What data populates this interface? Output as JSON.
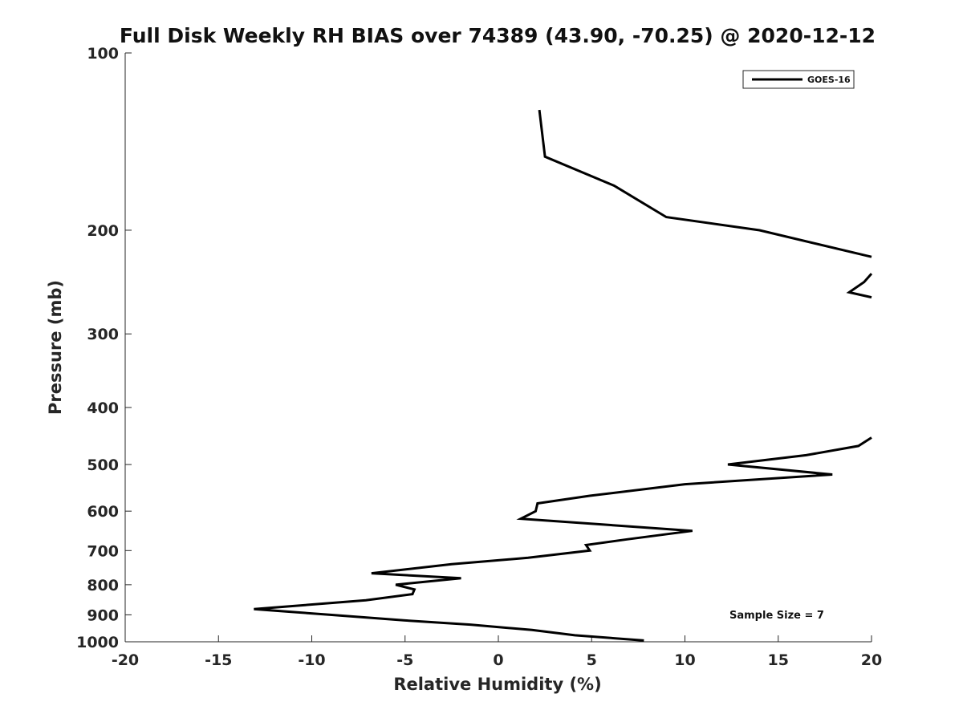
{
  "chart_data": {
    "type": "line",
    "title": "Full Disk Weekly RH BIAS over 74389 (43.90, -70.25) @ 2020-12-12",
    "xlabel": "Relative Humidity (%)",
    "ylabel": "Pressure (mb)",
    "xlim": [
      -20,
      20
    ],
    "ylim": [
      100,
      1000
    ],
    "y_scale": "log",
    "y_reversed": true,
    "x_ticks": [
      -20,
      -15,
      -10,
      -5,
      0,
      5,
      10,
      15,
      20
    ],
    "x_tick_labels": [
      "-20",
      "-15",
      "-10",
      "-5",
      "0",
      "5",
      "10",
      "15",
      "20"
    ],
    "y_ticks": [
      100,
      200,
      300,
      400,
      500,
      600,
      700,
      800,
      900,
      1000
    ],
    "y_tick_labels": [
      "100",
      "200",
      "300",
      "400",
      "500",
      "600",
      "700",
      "800",
      "900",
      "1000"
    ],
    "grid": false,
    "legend_position": "top-right",
    "annotation": "Sample Size = 7",
    "colors": {
      "line": "#000000",
      "axis": "#262626"
    },
    "series": [
      {
        "name": "GOES-16",
        "segments": [
          [
            [
              2.2,
              125
            ],
            [
              2.5,
              150
            ],
            [
              6.2,
              168
            ],
            [
              9.0,
              190
            ],
            [
              14.0,
              200
            ],
            [
              20.0,
              222
            ]
          ],
          [
            [
              20.0,
              237
            ],
            [
              19.6,
              245
            ],
            [
              18.8,
              255
            ],
            [
              20.0,
              260
            ]
          ],
          [
            [
              20.0,
              450
            ],
            [
              19.3,
              465
            ],
            [
              16.5,
              482
            ],
            [
              12.3,
              500
            ],
            [
              17.9,
              520
            ],
            [
              10.0,
              540
            ],
            [
              4.9,
              565
            ],
            [
              2.1,
              582
            ],
            [
              2.0,
              600
            ],
            [
              1.2,
              618
            ],
            [
              10.4,
              648
            ],
            [
              6.9,
              670
            ],
            [
              4.7,
              685
            ],
            [
              4.9,
              700
            ],
            [
              1.6,
              720
            ],
            [
              -2.5,
              738
            ],
            [
              -6.8,
              765
            ],
            [
              -2.0,
              780
            ],
            [
              -5.5,
              800
            ],
            [
              -4.5,
              815
            ],
            [
              -4.6,
              830
            ],
            [
              -7.1,
              850
            ],
            [
              -13.1,
              880
            ],
            [
              -9.0,
              900
            ],
            [
              -5.0,
              920
            ],
            [
              -1.5,
              935
            ],
            [
              1.8,
              955
            ],
            [
              4.1,
              975
            ],
            [
              7.8,
              995
            ]
          ]
        ]
      }
    ]
  }
}
